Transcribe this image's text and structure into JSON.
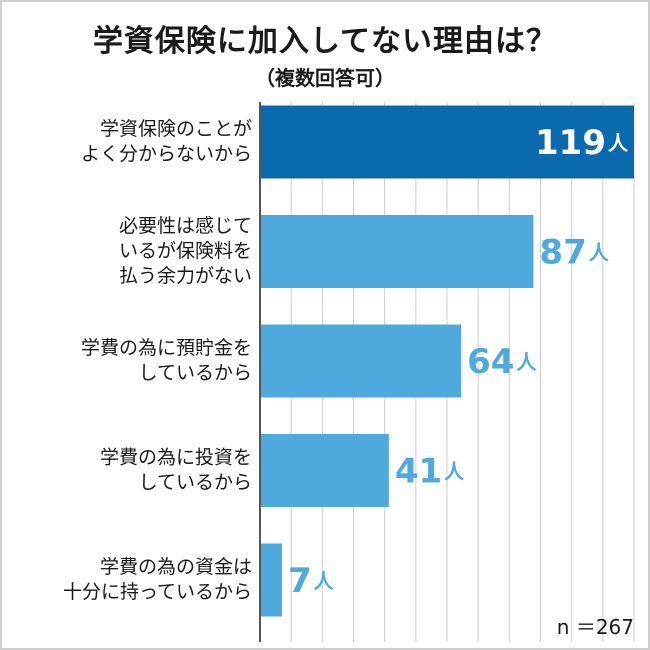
{
  "title": "学資保険に加入してない理由は？",
  "subtitle": "（複数回答可）",
  "note": "n ＝267",
  "colors": {
    "highlight": "#0a6aad",
    "bar": "#4ea9dc",
    "label_on_dark": "#ffffff",
    "label_outline": "#0a6aad",
    "value_text": "#4ea9dc",
    "category_text": "#1a1a1a",
    "grid": "#cccccc",
    "axis": "#555555"
  },
  "chart_data": {
    "type": "bar",
    "orientation": "horizontal",
    "unit": "人",
    "categories": [
      [
        "学資保険のことが",
        "よく分からないから"
      ],
      [
        "必要性は感じて",
        "いるが保険料を",
        "払う余力がない"
      ],
      [
        "学費の為に預貯金を",
        "しているから"
      ],
      [
        "学費の為に投資を",
        "しているから"
      ],
      [
        "学費の為の資金は",
        "十分に持っているから"
      ]
    ],
    "values": [
      119,
      87,
      64,
      41,
      7
    ],
    "value_labels": [
      "119",
      "87",
      "64",
      "41",
      "7"
    ],
    "highlight_index": 0,
    "xlim": [
      0,
      119
    ],
    "grid": true,
    "gridlines": 12,
    "legend": "none"
  }
}
